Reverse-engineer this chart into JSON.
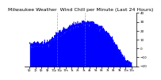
{
  "title": "Milwaukee Weather  Wind Chill per Minute (Last 24 Hours)",
  "line_color": "#0000ff",
  "fill_color": "#0000ff",
  "background_color": "#ffffff",
  "plot_bg_color": "#ffffff",
  "ylim": [
    -20,
    40
  ],
  "yticks": [
    40,
    30,
    20,
    10,
    0,
    -10,
    -20
  ],
  "num_points": 1440,
  "vline_positions": [
    0.27,
    0.54
  ],
  "title_fontsize": 4.5,
  "tick_fontsize": 3.0
}
